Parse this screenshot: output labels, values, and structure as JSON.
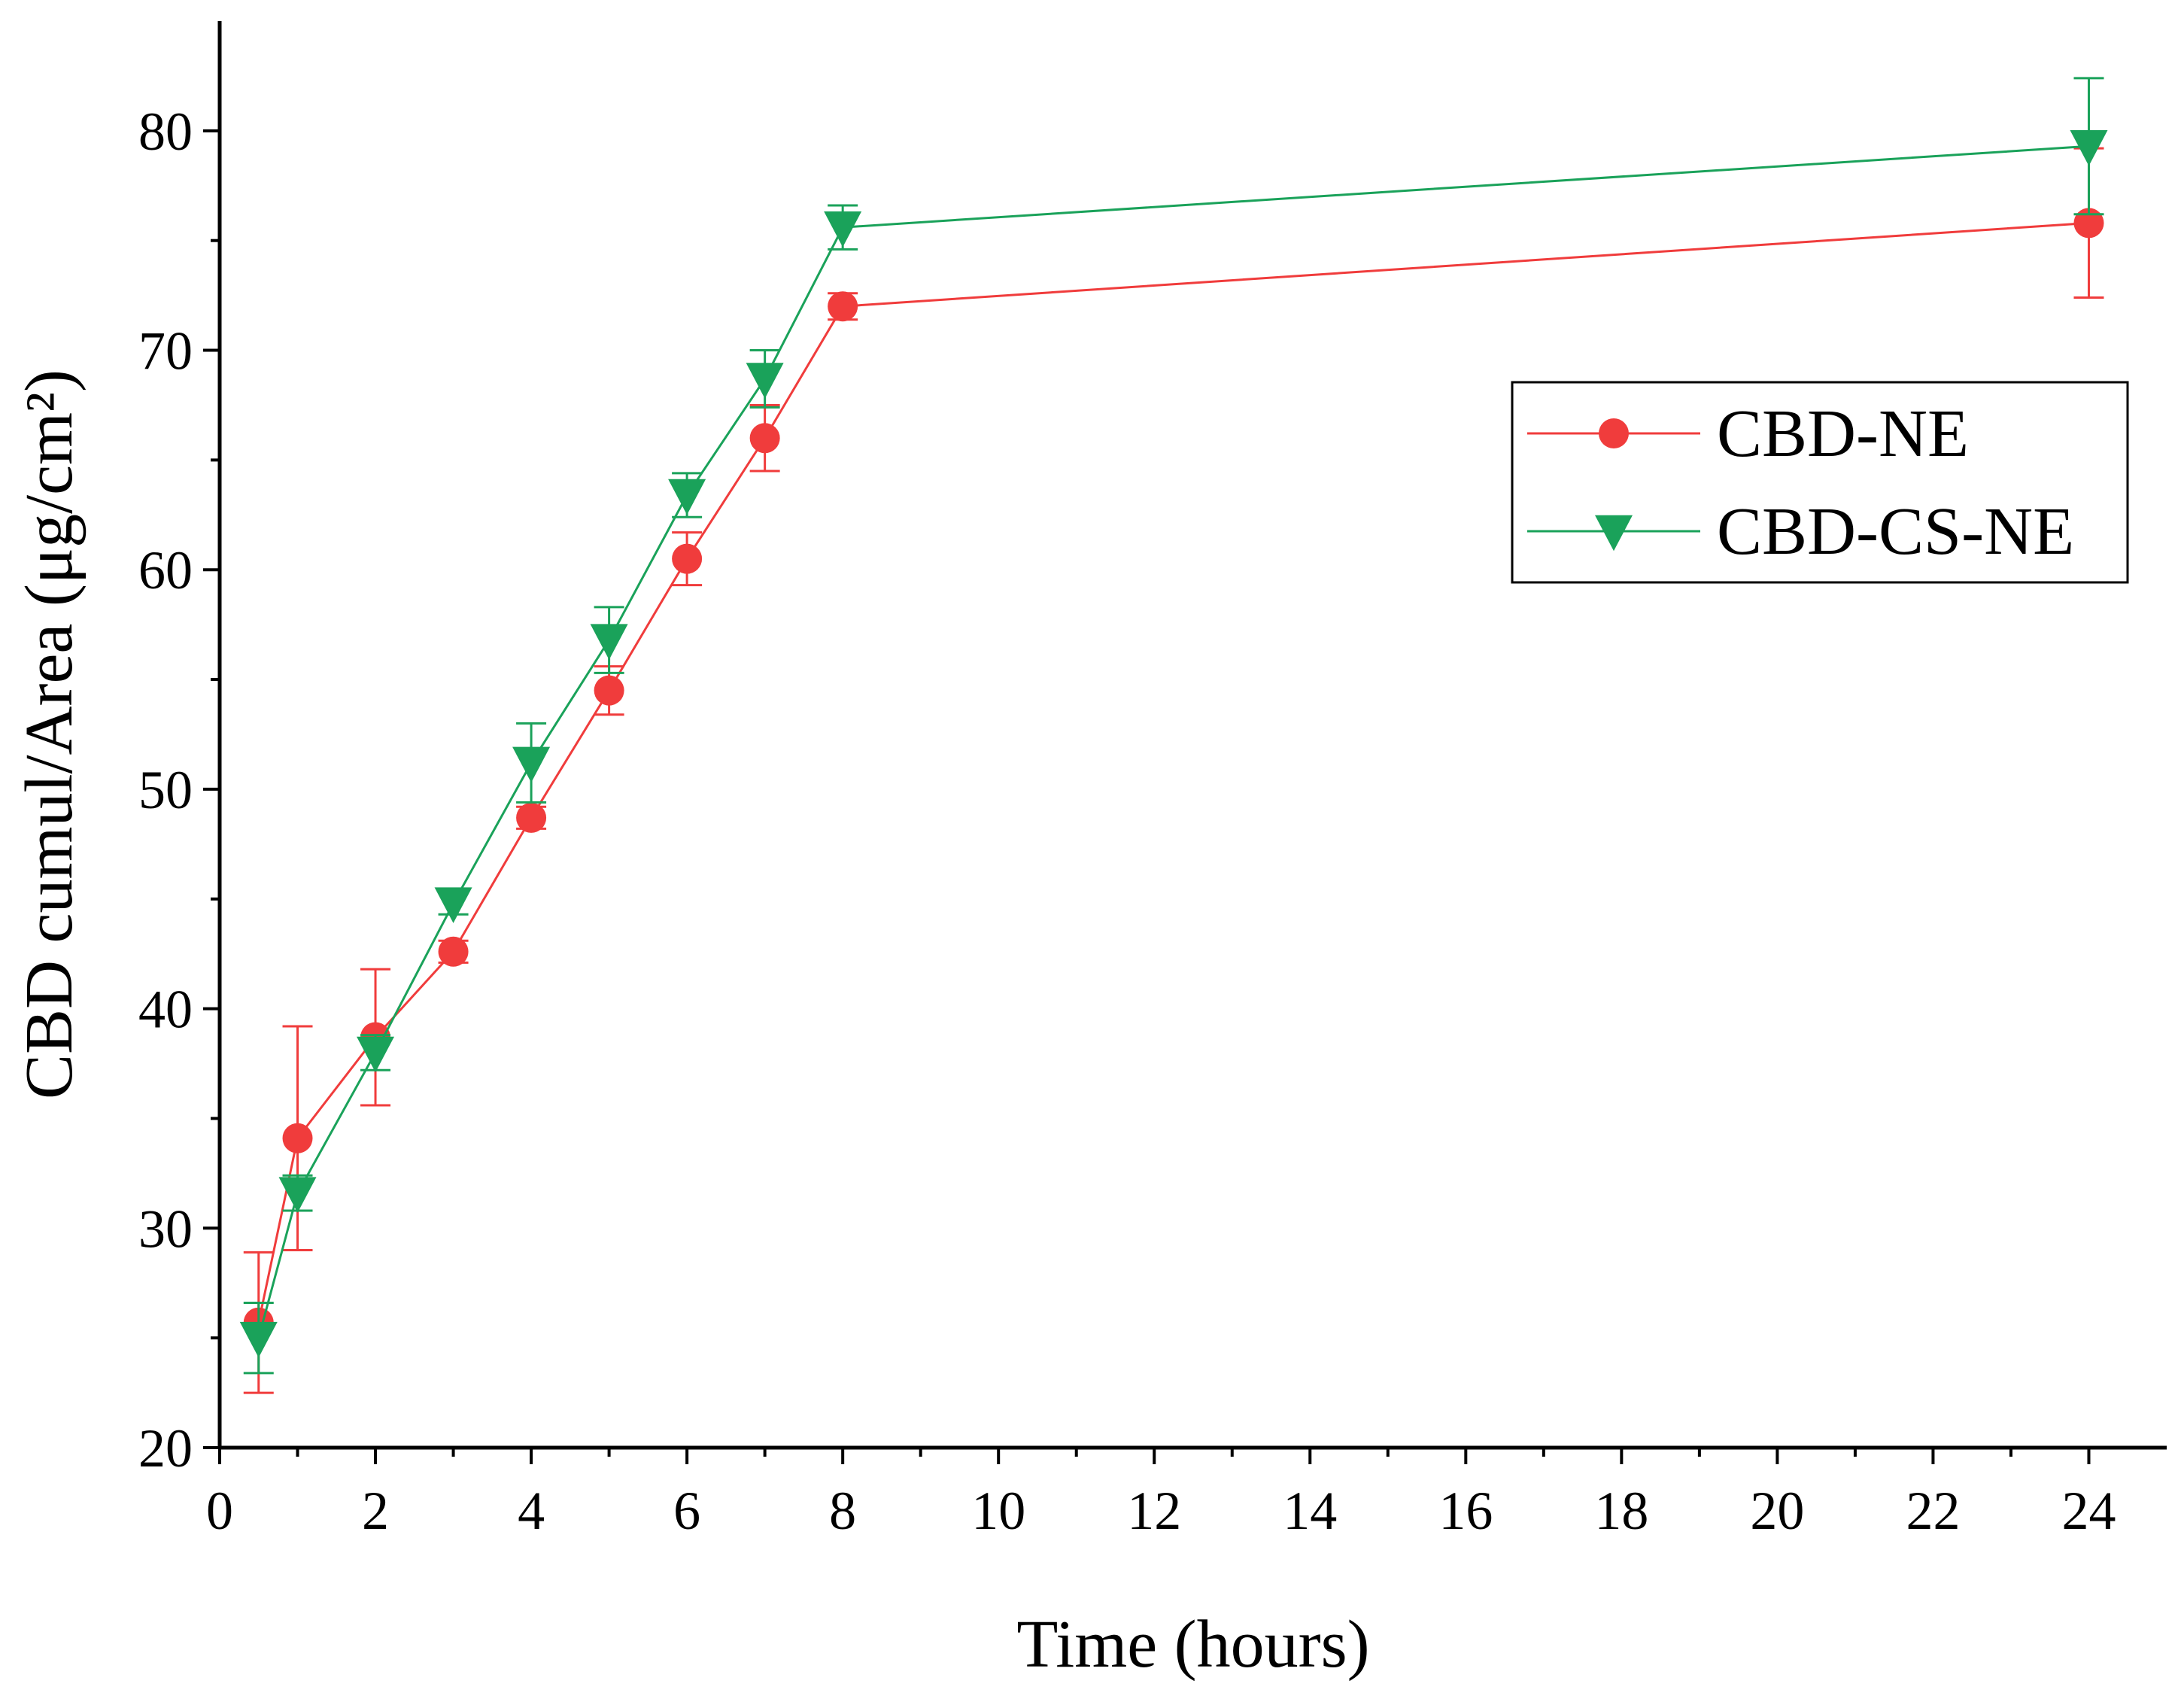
{
  "chart_data": {
    "type": "line",
    "title": "",
    "xlabel": "Time (hours)",
    "ylabel": "CBD cumul/Area (μg/cm²)",
    "xlim": [
      0,
      25
    ],
    "ylim": [
      20,
      85
    ],
    "xticks": [
      0,
      2,
      4,
      6,
      8,
      10,
      12,
      14,
      16,
      18,
      20,
      22,
      24
    ],
    "yticks": [
      20,
      30,
      40,
      50,
      60,
      70,
      80
    ],
    "grid": false,
    "legend_position": "right",
    "series": [
      {
        "name": "CBD-NE",
        "color": "#f03c3c",
        "marker": "circle",
        "x": [
          0.5,
          1,
          2,
          3,
          4,
          5,
          6,
          7,
          8,
          24
        ],
        "y": [
          25.7,
          34.1,
          38.7,
          42.6,
          48.7,
          54.5,
          60.5,
          66.0,
          72.0,
          75.8
        ],
        "err": [
          3.2,
          5.1,
          3.1,
          0.5,
          0.5,
          1.1,
          1.2,
          1.5,
          0.6,
          3.4
        ]
      },
      {
        "name": "CBD-CS-NE",
        "color": "#1aa25a",
        "marker": "triangle-down",
        "x": [
          0.5,
          1,
          2,
          3,
          4,
          5,
          6,
          7,
          8,
          24
        ],
        "y": [
          25.0,
          31.6,
          38.0,
          44.8,
          51.2,
          56.8,
          63.4,
          68.7,
          75.6,
          79.3
        ],
        "err": [
          1.6,
          0.8,
          0.8,
          0.5,
          1.8,
          1.5,
          1.0,
          1.3,
          1.0,
          3.1
        ]
      }
    ]
  }
}
